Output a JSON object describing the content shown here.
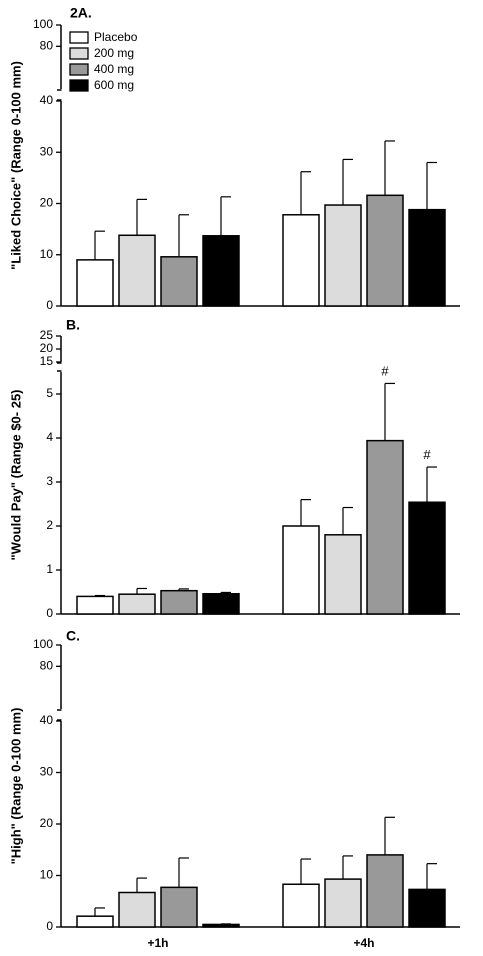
{
  "chart_data": [
    {
      "type": "bar",
      "panel_label": "2A.",
      "ylabel": "\"Liked Choice\" (Range 0-100 mm)",
      "categories": [
        "+1h",
        "+4h"
      ],
      "broken_axis": true,
      "lower_ylim": [
        0,
        40
      ],
      "upper_ylim": [
        40,
        100
      ],
      "yticks_lower": [
        "0",
        "10",
        "20",
        "30",
        "40"
      ],
      "yticks_upper": [
        "80",
        "100"
      ],
      "series": [
        {
          "name": "Placebo",
          "values": [
            9.0,
            17.8
          ],
          "errors": [
            5.6,
            8.4
          ]
        },
        {
          "name": "200 mg",
          "values": [
            13.8,
            19.7
          ],
          "errors": [
            7.0,
            8.9
          ]
        },
        {
          "name": "400 mg",
          "values": [
            9.6,
            21.6
          ],
          "errors": [
            8.2,
            10.6
          ]
        },
        {
          "name": "600 mg",
          "values": [
            13.7,
            18.8
          ],
          "errors": [
            7.6,
            9.2
          ]
        }
      ],
      "legend": {
        "placement": "top-left",
        "entries": [
          "Placebo",
          "200 mg",
          "400 mg",
          "600 mg"
        ]
      }
    },
    {
      "type": "bar",
      "panel_label": "B.",
      "ylabel": "\"Would  Pay\" (Range $0- 25)",
      "categories": [
        "+1h",
        "+4h"
      ],
      "broken_axis": true,
      "lower_ylim": [
        0,
        5.5
      ],
      "upper_ylim": [
        15,
        25
      ],
      "yticks_lower": [
        "0",
        "1",
        "2",
        "3",
        "4",
        "5"
      ],
      "yticks_upper": [
        "15",
        "20",
        "25"
      ],
      "series": [
        {
          "name": "Placebo",
          "values": [
            0.4,
            2.0
          ],
          "errors": [
            0.02,
            0.6
          ]
        },
        {
          "name": "200 mg",
          "values": [
            0.45,
            1.8
          ],
          "errors": [
            0.13,
            0.62
          ]
        },
        {
          "name": "400 mg",
          "values": [
            0.53,
            3.94
          ],
          "errors": [
            0.04,
            1.3
          ]
        },
        {
          "name": "600 mg",
          "values": [
            0.46,
            2.54
          ],
          "errors": [
            0.03,
            0.8
          ]
        }
      ],
      "annotations": [
        {
          "series": "400 mg",
          "category": "+4h",
          "text": "#"
        },
        {
          "series": "600 mg",
          "category": "+4h",
          "text": "#"
        }
      ]
    },
    {
      "type": "bar",
      "panel_label": "C.",
      "ylabel": "\"High\" (Range 0-100 mm)",
      "categories": [
        "+1h",
        "+4h"
      ],
      "broken_axis": true,
      "lower_ylim": [
        0,
        40
      ],
      "upper_ylim": [
        40,
        100
      ],
      "yticks_lower": [
        "0",
        "10",
        "20",
        "30",
        "40"
      ],
      "yticks_upper": [
        "80",
        "100"
      ],
      "series": [
        {
          "name": "Placebo",
          "values": [
            2.1,
            8.3
          ],
          "errors": [
            1.6,
            4.9
          ]
        },
        {
          "name": "200 mg",
          "values": [
            6.7,
            9.3
          ],
          "errors": [
            2.8,
            4.5
          ]
        },
        {
          "name": "400 mg",
          "values": [
            7.7,
            14.0
          ],
          "errors": [
            5.7,
            7.3
          ]
        },
        {
          "name": "600 mg",
          "values": [
            0.5,
            7.3
          ],
          "errors": [
            0.1,
            5.0
          ]
        }
      ]
    }
  ],
  "colors": {
    "Placebo": "#ffffff",
    "200 mg": "#dcdcdc",
    "400 mg": "#999999",
    "600 mg": "#000000"
  }
}
